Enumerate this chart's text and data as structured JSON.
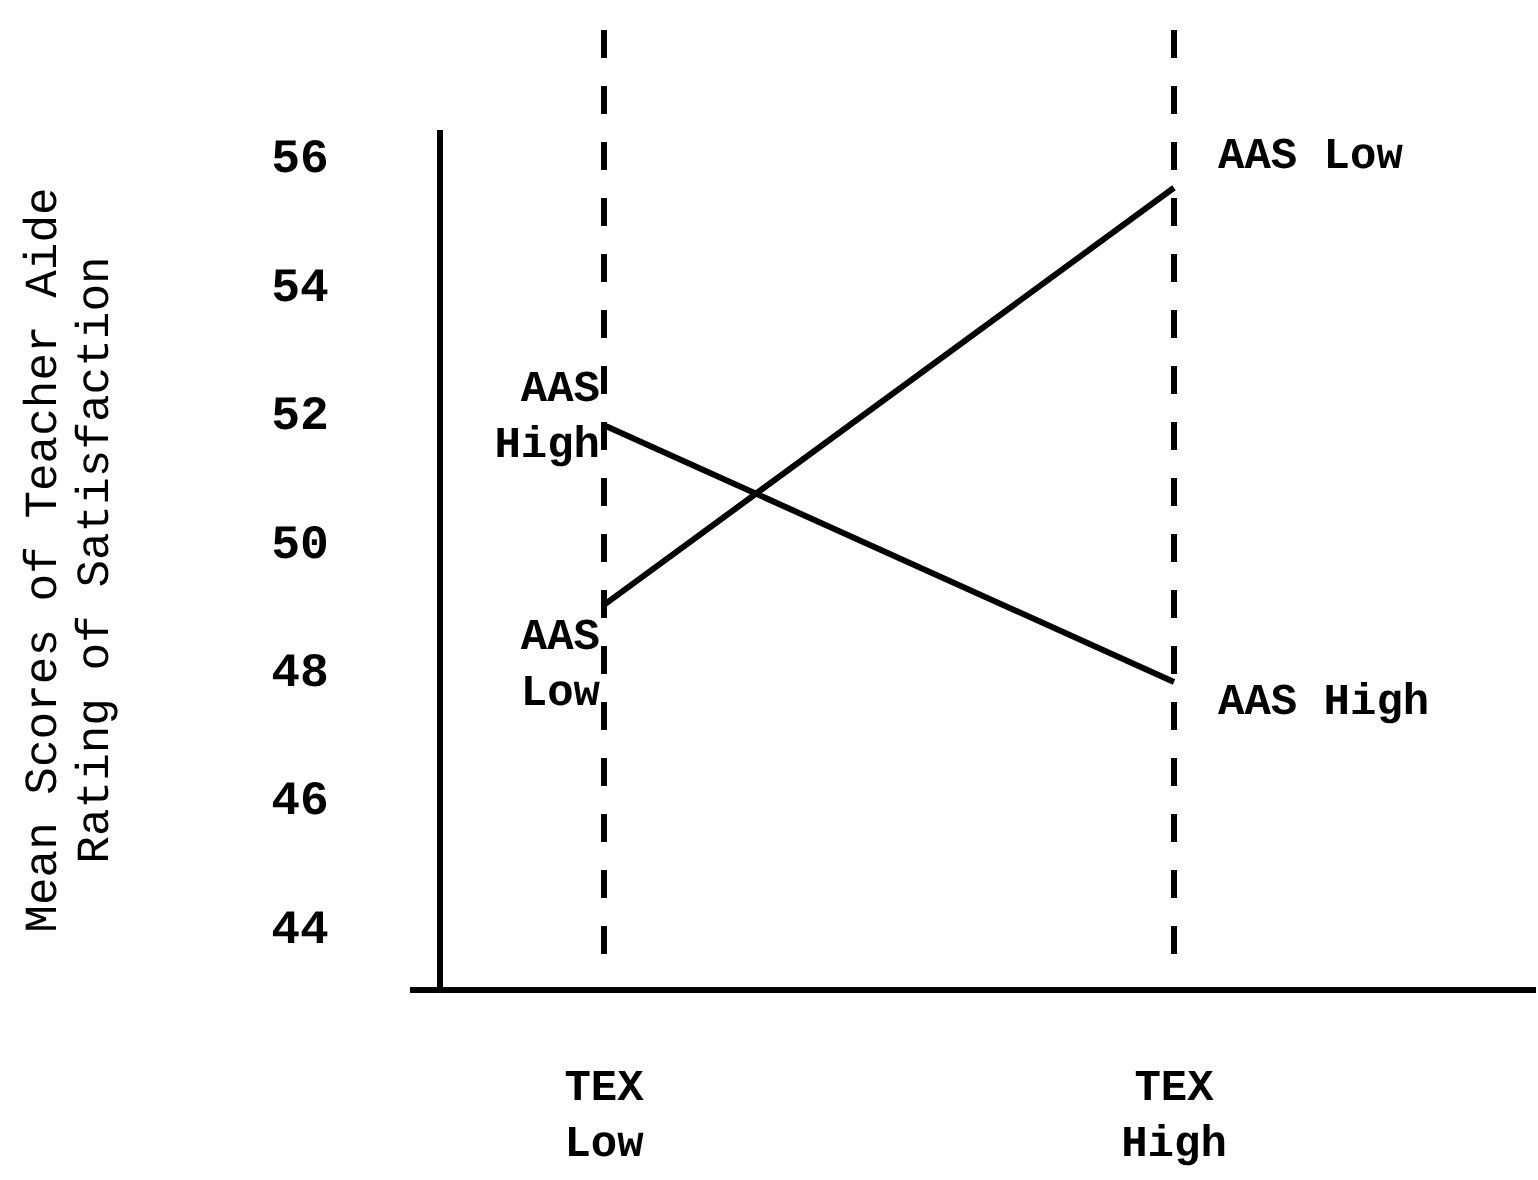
{
  "chart_data": {
    "type": "line",
    "ylabel": "Mean Scores of Teacher Aide\nRating of Satisfaction",
    "categories": [
      "TEX Low",
      "TEX High"
    ],
    "series": [
      {
        "name": "AAS High",
        "color": "#000000",
        "values": [
          51.8,
          47.8
        ]
      },
      {
        "name": "AAS Low",
        "color": "#000000",
        "values": [
          49.0,
          55.5
        ]
      }
    ],
    "ylim": [
      43,
      56.4
    ],
    "yticks": [
      44,
      46,
      48,
      50,
      52,
      54,
      56
    ],
    "grid": "x"
  }
}
